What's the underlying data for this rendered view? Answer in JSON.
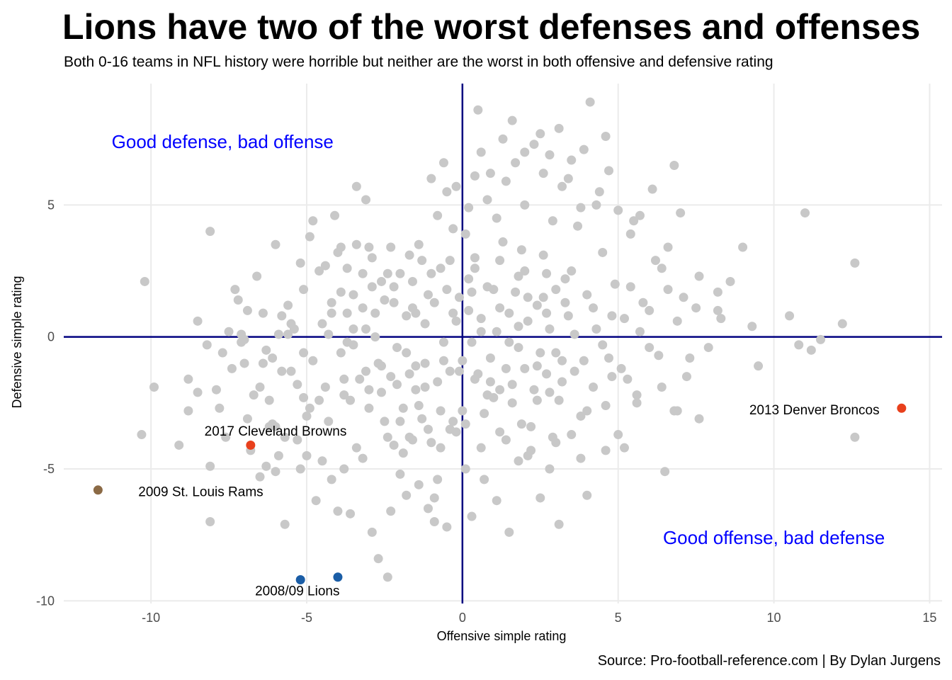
{
  "chart_data": {
    "type": "scatter",
    "title": "Lions have two of the worst defenses and offenses",
    "subtitle": "Both 0-16 teams in NFL history were horrible but neither are the worst in both offensive and defensive rating",
    "xlabel": "Offensive simple rating",
    "ylabel": "Defensive simple rating",
    "xlim": [
      -12.8,
      15.4
    ],
    "ylim": [
      -10.1,
      9.6
    ],
    "x_ticks": [
      -10,
      -5,
      0,
      5,
      10,
      15
    ],
    "y_ticks": [
      -10,
      -5,
      0,
      5
    ],
    "x_tick_labels": [
      "-10",
      "-5",
      "0",
      "5",
      "10",
      "15"
    ],
    "y_tick_labels": [
      "-10",
      "-5",
      "0",
      "5"
    ],
    "grid": true,
    "reference_lines": {
      "x": 0,
      "y": 0,
      "color": "#000080"
    },
    "caption": "Source: Pro-football-reference.com | By Dylan Jurgens",
    "quadrant_labels": [
      {
        "text": "Good defense, bad offense",
        "x": -7.7,
        "y": 7.4,
        "color": "#0000ff"
      },
      {
        "text": "Good offense, bad defense",
        "x": 10.0,
        "y": -7.6,
        "color": "#0000ff"
      }
    ],
    "highlighted": [
      {
        "name": "2013 Denver Broncos",
        "x": 14.1,
        "y": -2.7,
        "color": "#e8401c",
        "label": "2013 Denver Broncos",
        "label_x": 11.3,
        "label_y": -2.75
      },
      {
        "name": "2017 Cleveland Browns",
        "x": -6.8,
        "y": -4.1,
        "color": "#e8401c",
        "label": "2017 Cleveland Browns",
        "label_x": -6.0,
        "label_y": -3.55
      },
      {
        "name": "2009 St. Louis Rams",
        "x": -11.7,
        "y": -5.8,
        "color": "#8b6a45",
        "label": "2009 St. Louis Rams",
        "label_x": -8.4,
        "label_y": -5.85
      },
      {
        "name": "2008 Lions",
        "x": -5.2,
        "y": -9.2,
        "color": "#1a5da6",
        "label": "",
        "label_x": 0,
        "label_y": 0
      },
      {
        "name": "2009 Lions",
        "x": -4.0,
        "y": -9.1,
        "color": "#1a5da6",
        "label": "2008/09 Lions",
        "label_x": -5.3,
        "label_y": -9.6
      }
    ],
    "points_color": "#c8c8c8",
    "points": [
      [
        -10.2,
        2.1
      ],
      [
        -10.3,
        -3.7
      ],
      [
        -9.9,
        -1.9
      ],
      [
        -9.1,
        -4.1
      ],
      [
        -8.8,
        -1.6
      ],
      [
        -8.8,
        -2.8
      ],
      [
        -8.5,
        0.6
      ],
      [
        -8.5,
        -2.1
      ],
      [
        -8.1,
        4.0
      ],
      [
        -8.1,
        -4.9
      ],
      [
        -8.1,
        -7.0
      ],
      [
        -7.9,
        -2.0
      ],
      [
        -7.8,
        -2.7
      ],
      [
        -7.7,
        -0.6
      ],
      [
        -7.6,
        -3.8
      ],
      [
        -7.3,
        1.8
      ],
      [
        -7.2,
        1.4
      ],
      [
        -7.1,
        0.1
      ],
      [
        -7.1,
        -0.2
      ],
      [
        -7.0,
        -1.0
      ],
      [
        -6.9,
        -3.1
      ],
      [
        -6.8,
        -4.3
      ],
      [
        -6.6,
        2.3
      ],
      [
        -6.5,
        -1.9
      ],
      [
        -6.4,
        0.9
      ],
      [
        -6.4,
        -1.0
      ],
      [
        -6.3,
        -4.9
      ],
      [
        -6.2,
        -3.4
      ],
      [
        -6.2,
        -2.4
      ],
      [
        -6.1,
        -3.3
      ],
      [
        -6.0,
        -3.4
      ],
      [
        -5.9,
        -4.5
      ],
      [
        -5.8,
        -1.3
      ],
      [
        -5.7,
        -3.8
      ],
      [
        -5.6,
        0.1
      ],
      [
        -5.5,
        0.5
      ],
      [
        -5.4,
        0.3
      ],
      [
        -5.3,
        -3.9
      ],
      [
        -5.2,
        -5.0
      ],
      [
        -5.1,
        -0.6
      ],
      [
        -5.1,
        -2.3
      ],
      [
        -5.0,
        -4.5
      ],
      [
        -4.9,
        -2.7
      ],
      [
        -4.8,
        4.4
      ],
      [
        -4.5,
        0.5
      ],
      [
        -4.4,
        -1.9
      ],
      [
        -4.3,
        -3.2
      ],
      [
        -4.2,
        1.3
      ],
      [
        -4.2,
        0.9
      ],
      [
        -4.0,
        3.2
      ],
      [
        -3.9,
        -0.6
      ],
      [
        -3.8,
        -2.2
      ],
      [
        -3.7,
        0.9
      ],
      [
        -3.7,
        -0.2
      ],
      [
        -3.6,
        -2.4
      ],
      [
        -3.5,
        1.6
      ],
      [
        -3.5,
        0.3
      ],
      [
        -3.4,
        3.5
      ],
      [
        -3.3,
        -1.6
      ],
      [
        -3.2,
        2.4
      ],
      [
        -3.1,
        0.3
      ],
      [
        -3.1,
        -1.3
      ],
      [
        -3.0,
        -2.7
      ],
      [
        -2.9,
        1.9
      ],
      [
        -2.8,
        0.9
      ],
      [
        -2.7,
        -1.0
      ],
      [
        -2.6,
        -2.1
      ],
      [
        -2.5,
        -3.2
      ],
      [
        -2.4,
        -3.8
      ],
      [
        -2.3,
        -6.6
      ],
      [
        -2.2,
        1.3
      ],
      [
        -2.1,
        -1.8
      ],
      [
        -2.0,
        -3.2
      ],
      [
        -1.9,
        -4.4
      ],
      [
        -1.8,
        -0.6
      ],
      [
        -1.7,
        -1.4
      ],
      [
        -1.6,
        2.1
      ],
      [
        -1.5,
        0.9
      ],
      [
        -1.4,
        -2.6
      ],
      [
        -1.3,
        -3.1
      ],
      [
        -1.2,
        -1.0
      ],
      [
        -1.1,
        -3.5
      ],
      [
        -1.0,
        2.4
      ],
      [
        -0.9,
        -6.1
      ],
      [
        -0.8,
        -5.4
      ],
      [
        -0.7,
        -2.8
      ],
      [
        -0.6,
        -0.9
      ],
      [
        -0.5,
        -7.2
      ],
      [
        -0.4,
        2.9
      ],
      [
        -0.3,
        -3.2
      ],
      [
        -0.2,
        0.6
      ],
      [
        -0.1,
        -1.3
      ],
      [
        0.1,
        -3.3
      ],
      [
        0.2,
        2.2
      ],
      [
        0.3,
        -0.2
      ],
      [
        0.4,
        3.0
      ],
      [
        0.5,
        -1.4
      ],
      [
        0.6,
        0.7
      ],
      [
        0.7,
        -2.9
      ],
      [
        0.8,
        1.9
      ],
      [
        0.9,
        -0.8
      ],
      [
        1.0,
        -2.3
      ],
      [
        1.1,
        0.2
      ],
      [
        1.2,
        -3.6
      ],
      [
        1.3,
        3.6
      ],
      [
        1.4,
        -1.2
      ],
      [
        1.5,
        0.9
      ],
      [
        1.6,
        -2.5
      ],
      [
        1.7,
        1.7
      ],
      [
        1.8,
        -0.4
      ],
      [
        1.9,
        -3.3
      ],
      [
        2.0,
        2.5
      ],
      [
        2.1,
        0.6
      ],
      [
        2.2,
        -4.3
      ],
      [
        2.3,
        -2.0
      ],
      [
        2.4,
        1.2
      ],
      [
        2.5,
        -0.6
      ],
      [
        2.6,
        3.1
      ],
      [
        2.7,
        -1.4
      ],
      [
        2.8,
        0.3
      ],
      [
        2.9,
        -3.8
      ],
      [
        3.0,
        1.8
      ],
      [
        3.1,
        -2.4
      ],
      [
        3.2,
        -0.9
      ],
      [
        3.3,
        2.2
      ],
      [
        3.4,
        0.8
      ],
      [
        3.6,
        -1.3
      ],
      [
        3.7,
        4.2
      ],
      [
        3.8,
        -3.0
      ],
      [
        4.0,
        1.6
      ],
      [
        4.2,
        -1.9
      ],
      [
        4.3,
        0.3
      ],
      [
        4.5,
        3.2
      ],
      [
        4.6,
        -2.6
      ],
      [
        4.7,
        -0.8
      ],
      [
        4.9,
        2.0
      ],
      [
        5.0,
        -3.7
      ],
      [
        5.2,
        0.7
      ],
      [
        5.3,
        -1.6
      ],
      [
        5.5,
        4.4
      ],
      [
        5.6,
        -2.5
      ],
      [
        5.8,
        1.3
      ],
      [
        6.0,
        -0.4
      ],
      [
        6.2,
        2.9
      ],
      [
        6.4,
        -1.9
      ],
      [
        6.6,
        3.4
      ],
      [
        6.8,
        -2.8
      ],
      [
        7.1,
        1.5
      ],
      [
        7.3,
        -0.8
      ],
      [
        7.6,
        2.3
      ],
      [
        7.9,
        -0.4
      ],
      [
        8.3,
        0.7
      ],
      [
        8.6,
        2.1
      ],
      [
        9.0,
        3.4
      ],
      [
        9.3,
        0.4
      ],
      [
        9.5,
        -1.1
      ],
      [
        10.5,
        0.8
      ],
      [
        10.8,
        -0.3
      ],
      [
        11.0,
        4.7
      ],
      [
        11.2,
        -0.5
      ],
      [
        11.5,
        -0.1
      ],
      [
        12.2,
        0.5
      ],
      [
        12.6,
        2.8
      ],
      [
        12.6,
        -3.8
      ],
      [
        -6.0,
        3.5
      ],
      [
        -5.8,
        0.8
      ],
      [
        -5.6,
        1.2
      ],
      [
        -5.2,
        2.8
      ],
      [
        -4.9,
        3.8
      ],
      [
        -4.6,
        2.5
      ],
      [
        -4.4,
        2.7
      ],
      [
        -4.1,
        4.6
      ],
      [
        -3.9,
        3.4
      ],
      [
        -3.7,
        2.6
      ],
      [
        -3.4,
        5.7
      ],
      [
        -3.1,
        5.2
      ],
      [
        -2.9,
        3.0
      ],
      [
        -2.6,
        2.1
      ],
      [
        -2.3,
        3.4
      ],
      [
        -2.0,
        2.4
      ],
      [
        -1.7,
        3.1
      ],
      [
        -1.4,
        3.5
      ],
      [
        -1.1,
        1.6
      ],
      [
        -0.8,
        4.6
      ],
      [
        -0.5,
        5.5
      ],
      [
        -0.3,
        4.1
      ],
      [
        -0.1,
        1.5
      ],
      [
        0.2,
        4.9
      ],
      [
        0.4,
        6.1
      ],
      [
        0.6,
        7.0
      ],
      [
        0.8,
        5.2
      ],
      [
        1.1,
        4.5
      ],
      [
        1.4,
        5.9
      ],
      [
        1.7,
        6.6
      ],
      [
        2.0,
        5.0
      ],
      [
        2.3,
        7.3
      ],
      [
        2.6,
        6.2
      ],
      [
        2.9,
        4.4
      ],
      [
        3.2,
        5.7
      ],
      [
        3.5,
        6.7
      ],
      [
        3.8,
        4.9
      ],
      [
        4.1,
        8.9
      ],
      [
        4.4,
        5.5
      ],
      [
        4.7,
        6.3
      ],
      [
        5.0,
        4.8
      ],
      [
        5.4,
        3.9
      ],
      [
        5.7,
        4.6
      ],
      [
        6.1,
        5.6
      ],
      [
        6.4,
        2.6
      ],
      [
        6.8,
        6.5
      ],
      [
        7.0,
        4.7
      ],
      [
        -1.0,
        6.0
      ],
      [
        -0.6,
        6.6
      ],
      [
        -0.2,
        5.7
      ],
      [
        0.1,
        3.9
      ],
      [
        0.5,
        8.6
      ],
      [
        0.9,
        6.2
      ],
      [
        1.3,
        7.5
      ],
      [
        1.6,
        8.2
      ],
      [
        2.0,
        7.0
      ],
      [
        2.5,
        7.7
      ],
      [
        2.8,
        6.9
      ],
      [
        3.1,
        7.9
      ],
      [
        3.4,
        6.0
      ],
      [
        3.9,
        7.1
      ],
      [
        4.3,
        5.0
      ],
      [
        4.6,
        7.6
      ],
      [
        -7.4,
        -1.2
      ],
      [
        -6.7,
        -2.2
      ],
      [
        -6.5,
        -5.3
      ],
      [
        -6.0,
        -5.1
      ],
      [
        -5.7,
        -7.1
      ],
      [
        -5.0,
        -3.0
      ],
      [
        -4.7,
        -6.2
      ],
      [
        -4.5,
        -4.7
      ],
      [
        -4.2,
        -5.4
      ],
      [
        -4.0,
        -6.6
      ],
      [
        -3.8,
        -5.0
      ],
      [
        -3.6,
        -6.7
      ],
      [
        -3.4,
        -4.2
      ],
      [
        -3.2,
        -4.6
      ],
      [
        -2.9,
        -7.4
      ],
      [
        -2.7,
        -8.4
      ],
      [
        -2.4,
        -9.1
      ],
      [
        -2.2,
        -4.1
      ],
      [
        -2.0,
        -5.2
      ],
      [
        -1.8,
        -6.0
      ],
      [
        -1.6,
        -3.9
      ],
      [
        -1.4,
        -5.6
      ],
      [
        -1.1,
        -6.5
      ],
      [
        -0.9,
        -7.0
      ],
      [
        -0.7,
        -4.2
      ],
      [
        -0.4,
        -3.5
      ],
      [
        0.1,
        -5.0
      ],
      [
        0.3,
        -6.8
      ],
      [
        0.7,
        -5.4
      ],
      [
        1.1,
        -6.2
      ],
      [
        1.5,
        -7.4
      ],
      [
        1.8,
        -4.7
      ],
      [
        2.1,
        -4.5
      ],
      [
        2.5,
        -6.1
      ],
      [
        2.8,
        -5.0
      ],
      [
        3.1,
        -7.1
      ],
      [
        3.5,
        -3.7
      ],
      [
        4.0,
        -6.0
      ],
      [
        4.6,
        -4.3
      ],
      [
        5.2,
        -4.2
      ],
      [
        6.5,
        -5.1
      ],
      [
        7.6,
        -3.1
      ],
      [
        6.9,
        -2.8
      ],
      [
        -8.2,
        -0.3
      ],
      [
        -7.5,
        0.2
      ],
      [
        -6.9,
        1.0
      ],
      [
        -6.3,
        -0.5
      ],
      [
        -5.9,
        0.1
      ],
      [
        -5.5,
        -1.3
      ],
      [
        -5.1,
        1.8
      ],
      [
        -4.8,
        -0.9
      ],
      [
        -4.3,
        0.1
      ],
      [
        -3.9,
        1.7
      ],
      [
        -3.5,
        -0.3
      ],
      [
        -3.2,
        1.1
      ],
      [
        -2.8,
        0.0
      ],
      [
        -2.5,
        1.4
      ],
      [
        -2.1,
        -0.4
      ],
      [
        -1.8,
        0.8
      ],
      [
        -1.5,
        -1.1
      ],
      [
        -1.2,
        0.5
      ],
      [
        -0.9,
        1.3
      ],
      [
        -0.6,
        -0.2
      ],
      [
        -0.3,
        0.9
      ],
      [
        0.0,
        -0.9
      ],
      [
        0.3,
        1.7
      ],
      [
        0.6,
        0.2
      ],
      [
        0.9,
        -1.7
      ],
      [
        1.2,
        1.1
      ],
      [
        1.5,
        -0.2
      ],
      [
        1.8,
        0.4
      ],
      [
        2.1,
        1.5
      ],
      [
        2.4,
        -1.1
      ],
      [
        2.7,
        0.9
      ],
      [
        3.0,
        -0.6
      ],
      [
        3.3,
        1.3
      ],
      [
        3.6,
        0.1
      ],
      [
        3.9,
        -0.9
      ],
      [
        4.2,
        1.1
      ],
      [
        4.5,
        -0.3
      ],
      [
        4.8,
        0.8
      ],
      [
        5.1,
        -1.2
      ],
      [
        5.4,
        1.9
      ],
      [
        5.7,
        0.2
      ],
      [
        6.0,
        1.0
      ],
      [
        6.3,
        -0.7
      ],
      [
        6.6,
        1.8
      ],
      [
        6.9,
        0.6
      ],
      [
        7.2,
        -1.5
      ],
      [
        7.5,
        1.1
      ],
      [
        8.2,
        1.7
      ],
      [
        8.2,
        1.0
      ],
      [
        -7.0,
        -0.1
      ],
      [
        -6.1,
        -0.8
      ],
      [
        -5.3,
        -1.8
      ],
      [
        -4.6,
        -2.4
      ],
      [
        -3.8,
        -1.6
      ],
      [
        -3.0,
        -2.0
      ],
      [
        -2.3,
        -1.5
      ],
      [
        -1.5,
        -2.0
      ],
      [
        -0.8,
        -1.7
      ],
      [
        0.0,
        -2.8
      ],
      [
        0.8,
        -2.2
      ],
      [
        1.6,
        -1.8
      ],
      [
        2.4,
        -2.4
      ],
      [
        3.2,
        -1.7
      ],
      [
        4.0,
        -2.8
      ],
      [
        4.8,
        -1.5
      ],
      [
        5.6,
        -2.2
      ],
      [
        -1.7,
        -3.8
      ],
      [
        -1.0,
        -4.0
      ],
      [
        -0.2,
        -3.6
      ],
      [
        0.6,
        -4.2
      ],
      [
        1.4,
        -3.9
      ],
      [
        2.2,
        -3.4
      ],
      [
        3.0,
        -4.0
      ],
      [
        3.8,
        -4.6
      ],
      [
        -2.6,
        -1.1
      ],
      [
        -1.9,
        -2.7
      ],
      [
        -1.2,
        -1.9
      ],
      [
        -0.4,
        -1.3
      ],
      [
        0.4,
        -1.6
      ],
      [
        1.2,
        -2.0
      ],
      [
        2.0,
        -1.2
      ],
      [
        2.8,
        -2.1
      ],
      [
        -2.2,
        1.9
      ],
      [
        -1.3,
        2.9
      ],
      [
        -0.5,
        1.8
      ],
      [
        0.4,
        2.6
      ],
      [
        1.2,
        2.9
      ],
      [
        1.9,
        3.3
      ],
      [
        2.7,
        2.4
      ],
      [
        3.5,
        2.5
      ],
      [
        -3.0,
        3.4
      ],
      [
        -2.4,
        2.4
      ],
      [
        -1.6,
        1.1
      ],
      [
        -0.7,
        2.6
      ],
      [
        0.2,
        1.0
      ],
      [
        1.0,
        1.8
      ],
      [
        1.8,
        2.3
      ],
      [
        2.6,
        1.5
      ]
    ]
  }
}
